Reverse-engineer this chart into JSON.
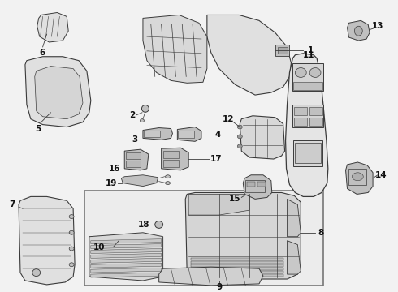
{
  "bg_color": "#f2f2f2",
  "line_color": "#3a3a3a",
  "text_color": "#111111",
  "fig_width": 4.9,
  "fig_height": 3.6,
  "dpi": 100,
  "box_bg": "#e8e8e8",
  "part_fill": "#e0e0e0",
  "dark_fill": "#c0c0c0",
  "mid_fill": "#d0d0d0"
}
